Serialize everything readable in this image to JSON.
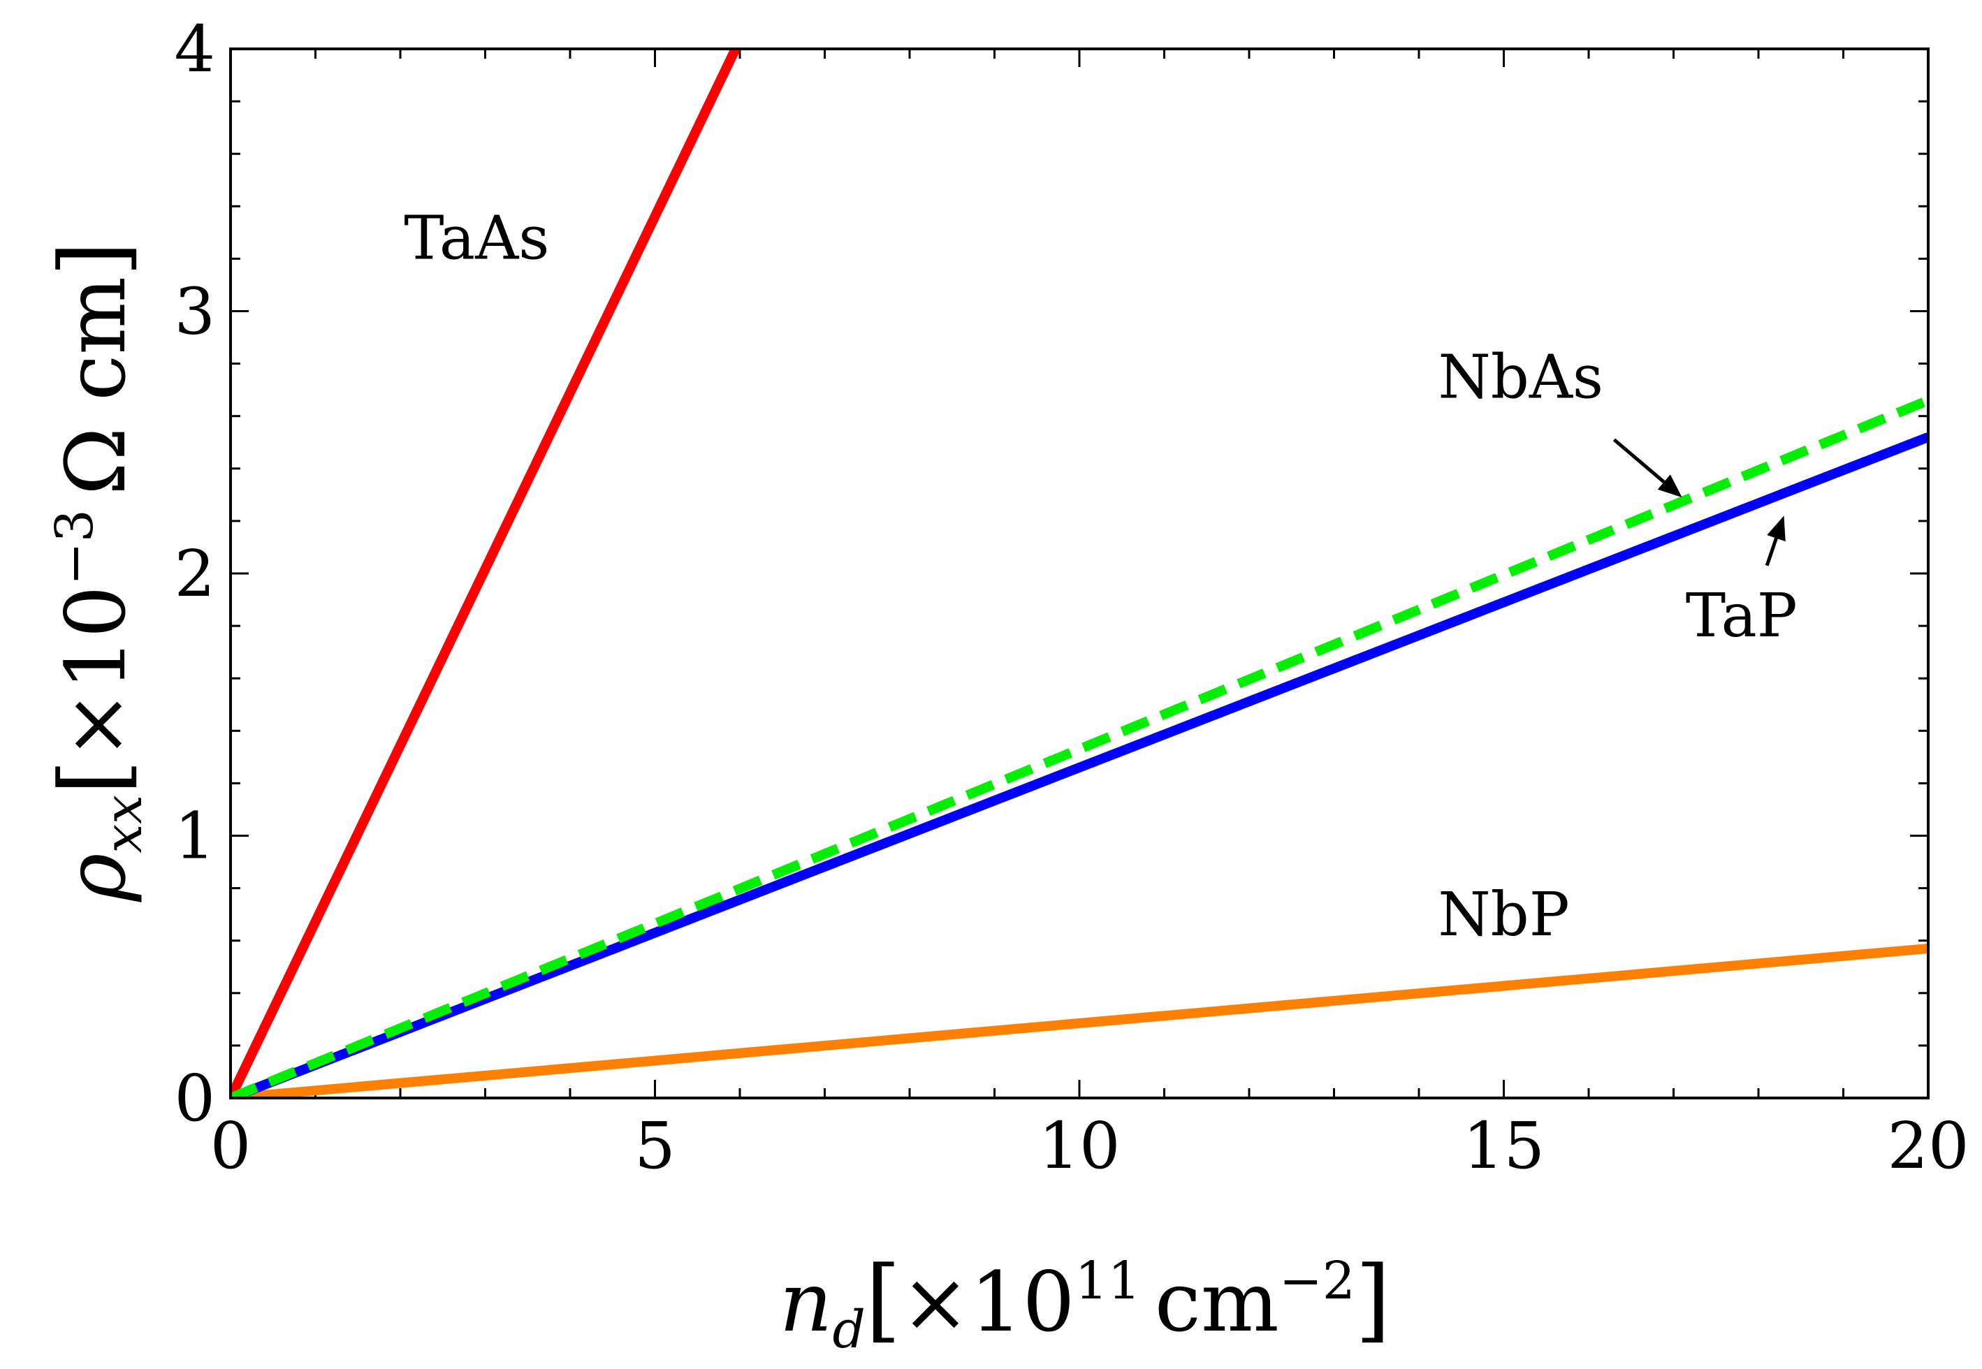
{
  "chart_data": {
    "type": "line",
    "title": "",
    "xlabel": {
      "symbol": "n",
      "subscript": "d",
      "bracket_open": "[",
      "times": "×",
      "base": "10",
      "exponent": "11",
      "unit": "cm",
      "unit_exponent": "−2",
      "bracket_close": "]"
    },
    "ylabel": {
      "symbol": "ρ",
      "subscript": "xx",
      "bracket_open": "[",
      "times": "×",
      "base": "10",
      "exponent": "−3",
      "unit": "Ω cm",
      "bracket_close": "]"
    },
    "xlim": [
      0,
      20
    ],
    "ylim": [
      0,
      4
    ],
    "xticks": [
      0,
      5,
      10,
      15,
      20
    ],
    "yticks": [
      0,
      1,
      2,
      3,
      4
    ],
    "x_minor_step": 1,
    "y_minor_step": 0.2,
    "series": [
      {
        "name": "TaAs",
        "color": "#ff0000",
        "dash": "solid",
        "x": [
          0,
          5.95
        ],
        "y": [
          0,
          4.0
        ]
      },
      {
        "name": "TaP",
        "color": "#0000ff",
        "dash": "solid",
        "x": [
          0,
          20
        ],
        "y": [
          0,
          2.52
        ]
      },
      {
        "name": "NbAs",
        "color": "#00ee00",
        "dash": "dashed",
        "x": [
          0,
          20
        ],
        "y": [
          0,
          2.66
        ]
      },
      {
        "name": "NbP",
        "color": "#ff8000",
        "dash": "solid",
        "x": [
          0,
          20
        ],
        "y": [
          0,
          0.57
        ]
      }
    ],
    "annotations": [
      {
        "text": "TaAs",
        "x": 2.9,
        "y": 3.2,
        "arrow": null
      },
      {
        "text": "NbAs",
        "x": 15.2,
        "y": 2.67,
        "arrow": {
          "from": [
            16.3,
            2.51
          ],
          "to": [
            17.1,
            2.29
          ]
        }
      },
      {
        "text": "TaP",
        "x": 17.8,
        "y": 1.76,
        "arrow": {
          "from": [
            18.1,
            2.03
          ],
          "to": [
            18.3,
            2.22
          ]
        }
      },
      {
        "text": "NbP",
        "x": 15.0,
        "y": 0.62,
        "arrow": null
      }
    ]
  }
}
